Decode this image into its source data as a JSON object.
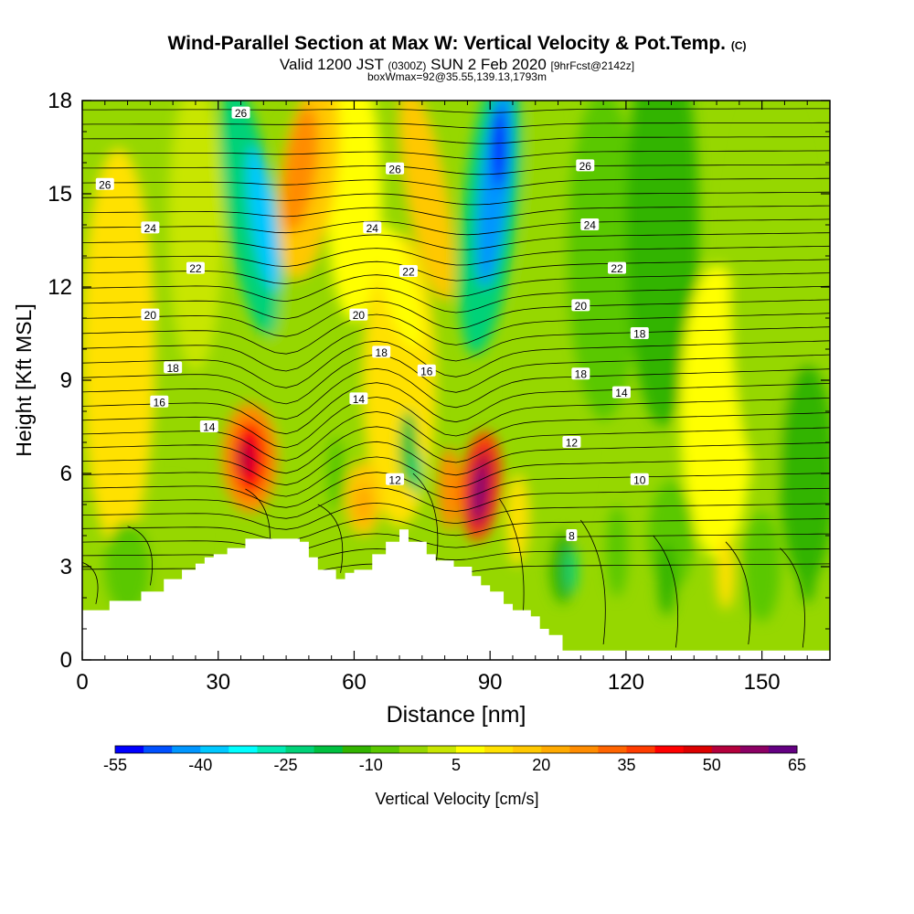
{
  "title": {
    "main": "Wind-Parallel Section at Max W: Vertical Velocity & Pot.Temp.",
    "copyright": "(C)",
    "valid_prefix": "Valid 1200 JST",
    "valid_utc": "(0300Z)",
    "valid_date": "SUN 2 Feb 2020",
    "forecast": "[9hrFcst@2142z]",
    "box_info": "boxWmax=92@35.55,139.13,1793m"
  },
  "chart_data": {
    "type": "heatmap",
    "xlabel": "Distance [nm]",
    "ylabel": "Height [Kft MSL]",
    "xlim": [
      0,
      165
    ],
    "ylim": [
      0,
      18
    ],
    "x_ticks": [
      "0",
      "30",
      "60",
      "90",
      "120",
      "150"
    ],
    "y_ticks": [
      "0",
      "3",
      "6",
      "9",
      "12",
      "15",
      "18"
    ],
    "colorbar": {
      "label": "Vertical Velocity [cm/s]",
      "tick_labels": [
        "-55",
        "-40",
        "-25",
        "-10",
        "5",
        "20",
        "35",
        "50",
        "65"
      ],
      "colors": [
        "#0000ff",
        "#0050ff",
        "#0096ff",
        "#00c8ff",
        "#00ffff",
        "#00ebb4",
        "#00d278",
        "#00c040",
        "#32b400",
        "#5ac800",
        "#96d700",
        "#c8e600",
        "#ffff00",
        "#ffe100",
        "#ffc800",
        "#ffaa00",
        "#ff8c00",
        "#ff6400",
        "#ff3c00",
        "#ff0000",
        "#dc0000",
        "#b4003c",
        "#8c0064",
        "#640082"
      ]
    },
    "vertical_velocity_features": [
      {
        "x": 37,
        "y": 6.5,
        "value": 45
      },
      {
        "x": 62,
        "y": 5.2,
        "value": 22
      },
      {
        "x": 81,
        "y": 5.5,
        "value": 30
      },
      {
        "x": 88,
        "y": 5.5,
        "value": 65
      },
      {
        "x": 40,
        "y": 15.0,
        "value": -40
      },
      {
        "x": 90,
        "y": 15.5,
        "value": -55
      },
      {
        "x": 72,
        "y": 6.5,
        "value": -20
      },
      {
        "x": 108,
        "y": 2.8,
        "value": -25
      }
    ],
    "terrain_profile": {
      "x": [
        0,
        6,
        13,
        18,
        22,
        25,
        27,
        29,
        32,
        36,
        42,
        48,
        50,
        52,
        56,
        58,
        60,
        64,
        67,
        70,
        72,
        76,
        78,
        82,
        86,
        88,
        90,
        93,
        95,
        99,
        101,
        103,
        106,
        165
      ],
      "height_kft": [
        1.6,
        1.9,
        2.2,
        2.6,
        2.9,
        3.1,
        3.3,
        3.4,
        3.6,
        3.9,
        3.9,
        3.8,
        3.3,
        2.9,
        2.6,
        2.8,
        2.9,
        3.4,
        3.8,
        4.2,
        3.8,
        3.4,
        3.2,
        3.0,
        2.7,
        2.4,
        2.2,
        1.8,
        1.6,
        1.4,
        1.0,
        0.8,
        0.3,
        0.3
      ]
    },
    "pot_temp_contour_labels": [
      {
        "label": "26",
        "x": 35,
        "y": 17.6
      },
      {
        "label": "26",
        "x": 5,
        "y": 15.3
      },
      {
        "label": "26",
        "x": 69,
        "y": 15.8
      },
      {
        "label": "26",
        "x": 111,
        "y": 15.9
      },
      {
        "label": "24",
        "x": 15,
        "y": 13.9
      },
      {
        "label": "24",
        "x": 64,
        "y": 13.9
      },
      {
        "label": "24",
        "x": 112,
        "y": 14.0
      },
      {
        "label": "22",
        "x": 25,
        "y": 12.6
      },
      {
        "label": "22",
        "x": 72,
        "y": 12.5
      },
      {
        "label": "22",
        "x": 118,
        "y": 12.6
      },
      {
        "label": "20",
        "x": 15,
        "y": 11.1
      },
      {
        "label": "20",
        "x": 61,
        "y": 11.1
      },
      {
        "label": "20",
        "x": 110,
        "y": 11.4
      },
      {
        "label": "18",
        "x": 123,
        "y": 10.5
      },
      {
        "label": "18",
        "x": 66,
        "y": 9.9
      },
      {
        "label": "18",
        "x": 20,
        "y": 9.4
      },
      {
        "label": "16",
        "x": 76,
        "y": 9.3
      },
      {
        "label": "18",
        "x": 110,
        "y": 9.2
      },
      {
        "label": "14",
        "x": 119,
        "y": 8.6
      },
      {
        "label": "16",
        "x": 17,
        "y": 8.3
      },
      {
        "label": "14",
        "x": 61,
        "y": 8.4
      },
      {
        "label": "14",
        "x": 28,
        "y": 7.5
      },
      {
        "label": "12",
        "x": 108,
        "y": 7.0
      },
      {
        "label": "12",
        "x": 69,
        "y": 5.8
      },
      {
        "label": "10",
        "x": 123,
        "y": 5.8
      },
      {
        "label": "8",
        "x": 108,
        "y": 4.0
      }
    ]
  }
}
